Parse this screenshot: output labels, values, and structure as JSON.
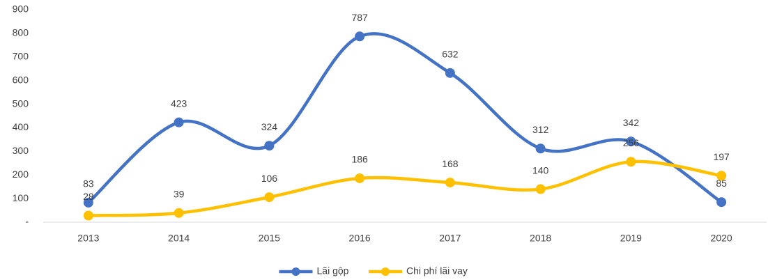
{
  "chart_data": {
    "type": "line",
    "categories": [
      "2013",
      "2014",
      "2015",
      "2016",
      "2017",
      "2018",
      "2019",
      "2020"
    ],
    "series": [
      {
        "name": "Lãi gộp",
        "color": "#4472c4",
        "values": [
          83,
          423,
          324,
          787,
          632,
          312,
          342,
          85
        ]
      },
      {
        "name": "Chi phí lãi vay",
        "color": "#ffc000",
        "values": [
          28,
          39,
          106,
          186,
          168,
          140,
          256,
          197
        ]
      }
    ],
    "ylim": [
      0,
      900
    ],
    "yticks": [
      {
        "value": 0,
        "label": "-"
      },
      100,
      200,
      300,
      400,
      500,
      600,
      700,
      800,
      900
    ],
    "smooth": true,
    "legend": "bottom"
  }
}
